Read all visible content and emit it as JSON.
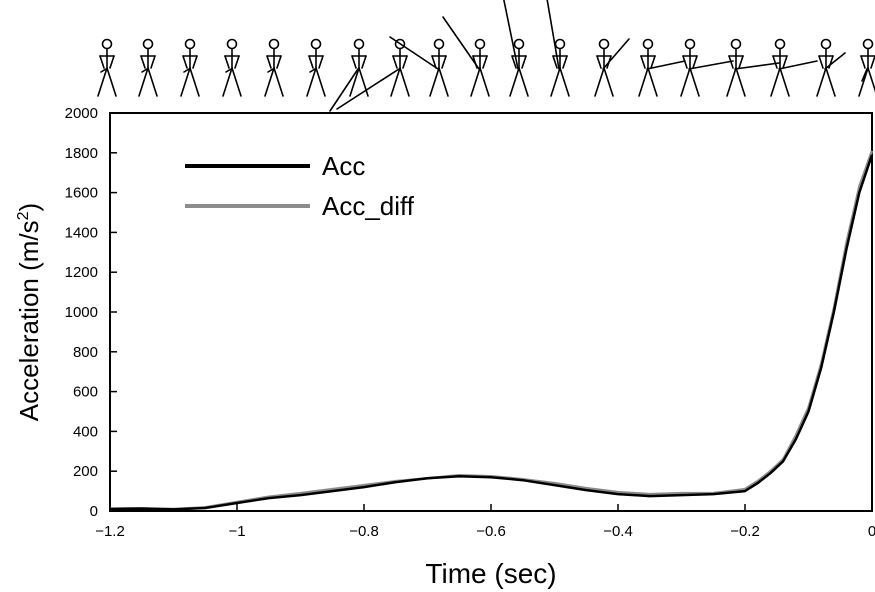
{
  "chart_data": {
    "type": "line",
    "xlabel": "Time (sec)",
    "ylabel_main": "Acceleration (m/s",
    "ylabel_sup": "2",
    "ylabel_close": ")",
    "xlim": [
      -1.2,
      0
    ],
    "ylim": [
      0,
      2000
    ],
    "x_ticks": [
      -1.2,
      -1,
      -0.8,
      -0.6,
      -0.4,
      -0.2,
      0
    ],
    "x_tick_labels": [
      "−1.2",
      "−1",
      "−0.8",
      "−0.6",
      "−0.4",
      "−0.2",
      "0"
    ],
    "y_ticks": [
      0,
      200,
      400,
      600,
      800,
      1000,
      1200,
      1400,
      1600,
      1800,
      2000
    ],
    "y_tick_labels": [
      "0",
      "200",
      "400",
      "600",
      "800",
      "1000",
      "1200",
      "1400",
      "1600",
      "1800",
      "2000"
    ],
    "grid": false,
    "legend_position": "top-left",
    "series": [
      {
        "name": "Acc",
        "color": "#000000",
        "x": [
          -1.2,
          -1.15,
          -1.1,
          -1.05,
          -1.0,
          -0.95,
          -0.9,
          -0.85,
          -0.8,
          -0.75,
          -0.7,
          -0.65,
          -0.6,
          -0.55,
          -0.5,
          -0.45,
          -0.4,
          -0.35,
          -0.3,
          -0.25,
          -0.2,
          -0.18,
          -0.16,
          -0.14,
          -0.12,
          -0.1,
          -0.08,
          -0.06,
          -0.04,
          -0.02,
          0.0
        ],
        "y": [
          10,
          12,
          8,
          15,
          40,
          65,
          80,
          100,
          120,
          145,
          165,
          175,
          170,
          155,
          130,
          105,
          85,
          75,
          80,
          85,
          100,
          140,
          190,
          250,
          360,
          500,
          720,
          1000,
          1320,
          1600,
          1790
        ]
      },
      {
        "name": "Acc_diff",
        "color": "#8c8c8c",
        "x": [
          -1.2,
          -1.15,
          -1.1,
          -1.05,
          -1.0,
          -0.95,
          -0.9,
          -0.85,
          -0.8,
          -0.75,
          -0.7,
          -0.65,
          -0.6,
          -0.55,
          -0.5,
          -0.45,
          -0.4,
          -0.35,
          -0.3,
          -0.25,
          -0.2,
          -0.18,
          -0.16,
          -0.14,
          -0.12,
          -0.1,
          -0.08,
          -0.06,
          -0.04,
          -0.02,
          0.0
        ],
        "y": [
          12,
          14,
          10,
          18,
          45,
          72,
          90,
          110,
          130,
          150,
          165,
          180,
          175,
          160,
          140,
          115,
          95,
          85,
          90,
          90,
          110,
          150,
          200,
          260,
          380,
          520,
          740,
          1020,
          1350,
          1630,
          1810
        ]
      }
    ]
  }
}
